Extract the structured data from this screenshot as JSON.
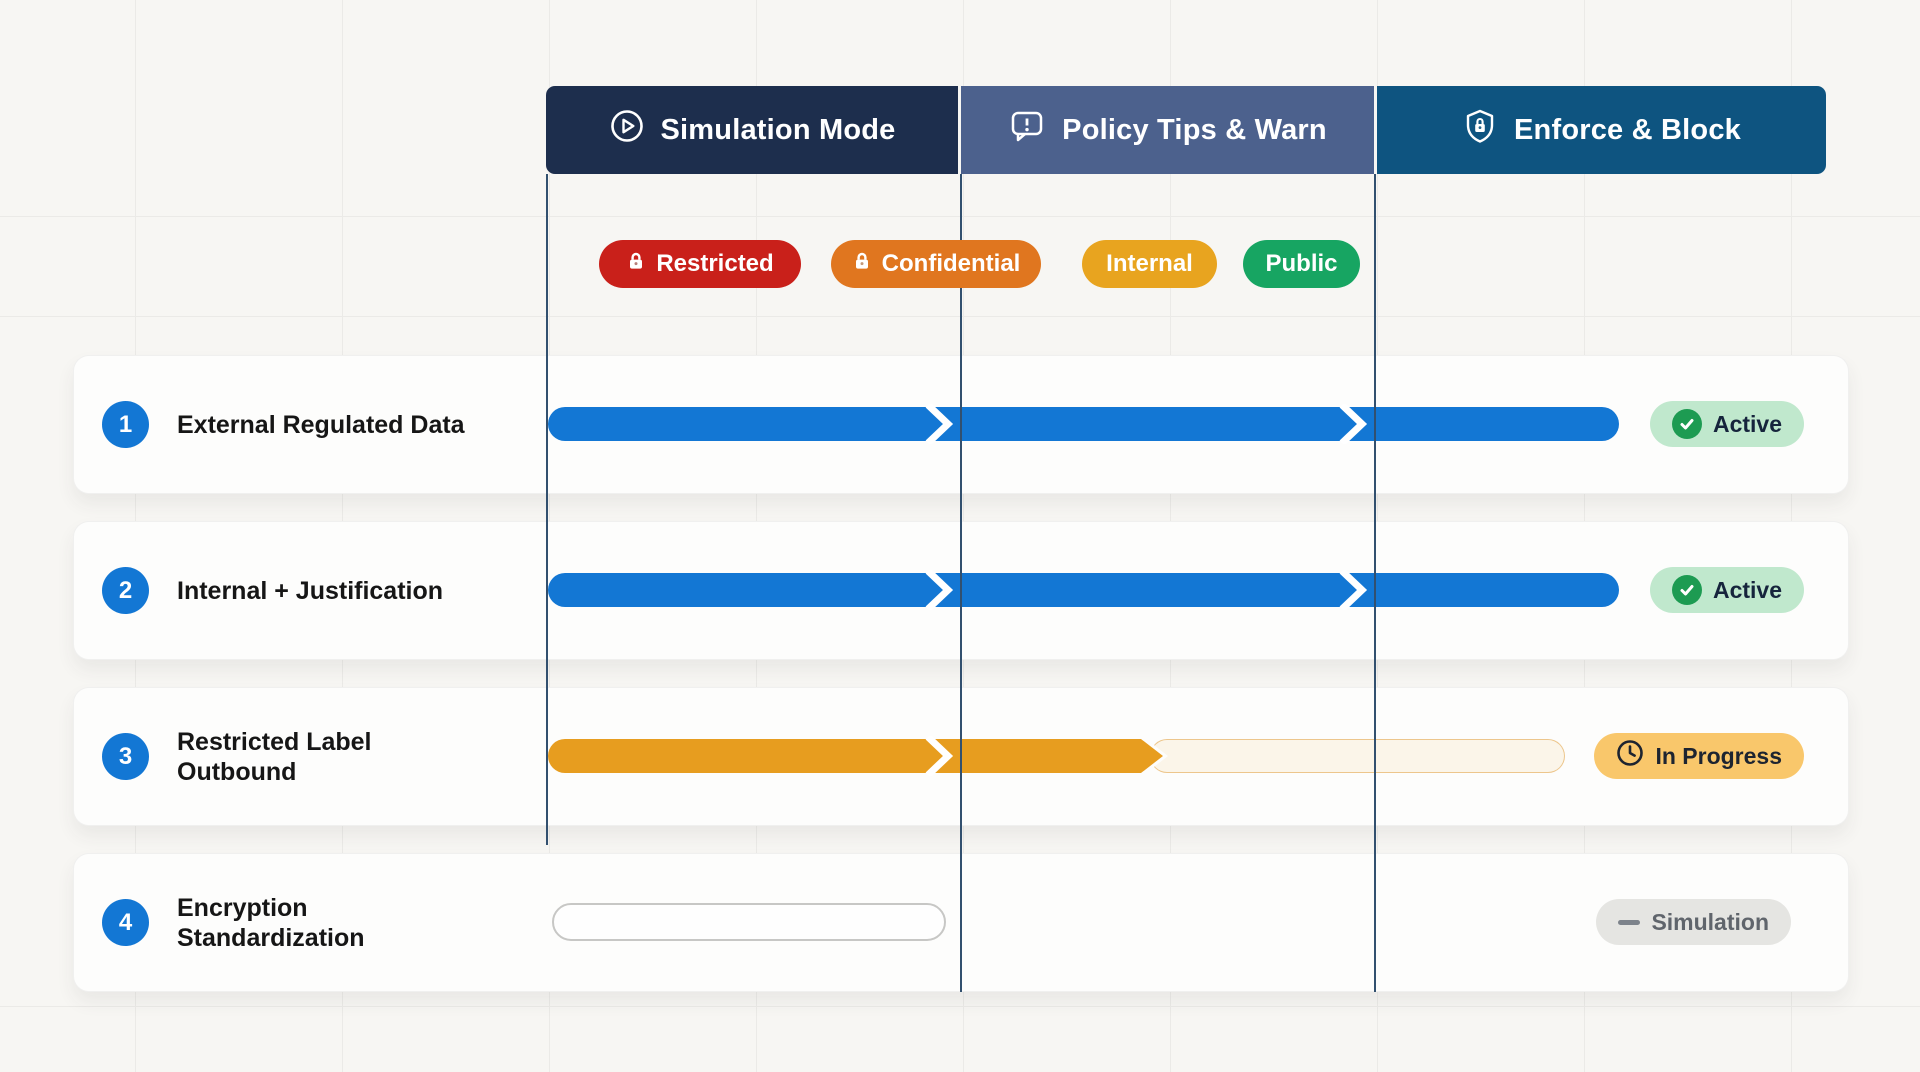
{
  "phases": [
    {
      "label": "Simulation Mode",
      "icon": "play-circle-icon"
    },
    {
      "label": "Policy Tips & Warn",
      "icon": "alert-bubble-icon"
    },
    {
      "label": "Enforce & Block",
      "icon": "shield-lock-icon"
    }
  ],
  "classification_labels": [
    {
      "label": "Restricted",
      "locked": true,
      "color": "#c9201a"
    },
    {
      "label": "Confidential",
      "locked": true,
      "color": "#e0761f"
    },
    {
      "label": "Internal",
      "locked": false,
      "color": "#e8a41f"
    },
    {
      "label": "Public",
      "locked": false,
      "color": "#17a562"
    }
  ],
  "rows": [
    {
      "number": "1",
      "title": "External Regulated Data",
      "status": {
        "label": "Active",
        "icon": "check-circle-icon"
      },
      "bar": "solid-blue-across-all-three-phases"
    },
    {
      "number": "2",
      "title": "Internal + Justification",
      "status": {
        "label": "Active",
        "icon": "check-circle-icon"
      },
      "bar": "solid-blue-across-all-three-phases"
    },
    {
      "number": "3",
      "title": "Restricted Label Outbound",
      "status": {
        "label": "In Progress",
        "icon": "clock-icon"
      },
      "bar": "solid-orange-through-mid-phase-2-then-outlined-planned-segment"
    },
    {
      "number": "4",
      "title": "Encryption Standardization",
      "status": {
        "label": "Simulation",
        "icon": "dash-icon"
      },
      "bar": "empty-outline-pill-in-phase-1"
    }
  ],
  "colors": {
    "page-bg": "#f7f6f3",
    "card-bg": "#fdfdfc",
    "grid": "#ebeae7",
    "line": "#32506f",
    "tab-simulation": "#1d2e4d",
    "tab-tips": "#4c618d",
    "tab-enforce": "#0e5480",
    "bar-blue": "#1377d4",
    "bar-orange": "#e79d1f",
    "label-red": "#c9201a",
    "label-orange": "#e0761f",
    "label-amber": "#e8a41f",
    "label-green": "#17a562",
    "status-active-bg": "#c0e8cd",
    "status-check": "#1d9b52",
    "status-progress-bg": "#f9c76b",
    "status-sim-bg": "#e5e5e2"
  }
}
